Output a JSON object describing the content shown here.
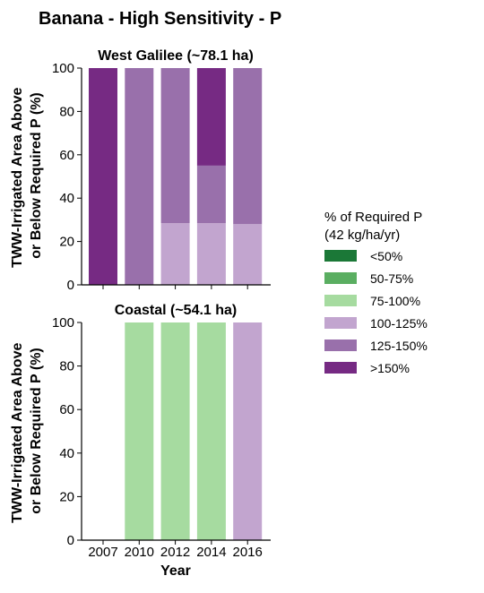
{
  "figure": {
    "title": "Banana - High Sensitivity - P"
  },
  "legend": {
    "title_line1": "% of Required P",
    "title_line2": "(42 kg/ha/yr)",
    "position": "right",
    "items": [
      {
        "label": "<50%",
        "color": "#1b7837"
      },
      {
        "label": "50-75%",
        "color": "#5aae61"
      },
      {
        "label": "75-100%",
        "color": "#a6dba0"
      },
      {
        "label": "100-125%",
        "color": "#c2a5cf"
      },
      {
        "label": "125-150%",
        "color": "#9970ab"
      },
      {
        "label": ">150%",
        "color": "#762a83"
      }
    ]
  },
  "chart_data": [
    {
      "type": "bar",
      "stacked": true,
      "title": "West Galilee (~78.1 ha)",
      "ylabel_line1": "TWW-Irrigated Area Above",
      "ylabel_line2": "or Below Required P (%)",
      "xlabel": "",
      "categories": [
        "2007",
        "2010",
        "2012",
        "2014",
        "2016"
      ],
      "ylim": [
        0,
        100
      ],
      "yticks": [
        0,
        20,
        40,
        60,
        80,
        100
      ],
      "show_xtick_labels": false,
      "series": [
        {
          "name": "<50%",
          "color": "#1b7837",
          "values": [
            0,
            0,
            0,
            0,
            0
          ]
        },
        {
          "name": "50-75%",
          "color": "#5aae61",
          "values": [
            0,
            0,
            0,
            0,
            0
          ]
        },
        {
          "name": "75-100%",
          "color": "#a6dba0",
          "values": [
            0,
            0,
            0,
            0,
            0
          ]
        },
        {
          "name": "100-125%",
          "color": "#c2a5cf",
          "values": [
            0,
            0,
            28.5,
            28.5,
            28
          ]
        },
        {
          "name": "125-150%",
          "color": "#9970ab",
          "values": [
            0,
            100,
            71.5,
            26.5,
            72
          ]
        },
        {
          "name": ">150%",
          "color": "#762a83",
          "values": [
            100,
            0,
            0,
            45,
            0
          ]
        }
      ]
    },
    {
      "type": "bar",
      "stacked": true,
      "title": "Coastal (~54.1 ha)",
      "ylabel_line1": "TWW-Irrigated Area Above",
      "ylabel_line2": "or Below Required P (%)",
      "xlabel": "Year",
      "categories": [
        "2007",
        "2010",
        "2012",
        "2014",
        "2016"
      ],
      "ylim": [
        0,
        100
      ],
      "yticks": [
        0,
        20,
        40,
        60,
        80,
        100
      ],
      "show_xtick_labels": true,
      "series": [
        {
          "name": "<50%",
          "color": "#1b7837",
          "values": [
            0,
            0,
            0,
            0,
            0
          ]
        },
        {
          "name": "50-75%",
          "color": "#5aae61",
          "values": [
            0,
            0,
            0,
            0,
            0
          ]
        },
        {
          "name": "75-100%",
          "color": "#a6dba0",
          "values": [
            0,
            100,
            100,
            100,
            0
          ]
        },
        {
          "name": "100-125%",
          "color": "#c2a5cf",
          "values": [
            0,
            0,
            0,
            0,
            100
          ]
        },
        {
          "name": "125-150%",
          "color": "#9970ab",
          "values": [
            0,
            0,
            0,
            0,
            0
          ]
        },
        {
          "name": ">150%",
          "color": "#762a83",
          "values": [
            0,
            0,
            0,
            0,
            0
          ]
        }
      ]
    }
  ]
}
